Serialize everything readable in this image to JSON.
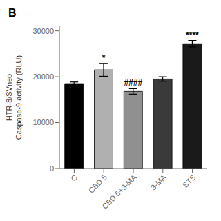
{
  "chart_data": {
    "type": "bar",
    "title": "B",
    "ylabel": "HTR-8/SVneo\nCaspase-9 activity (RLU)",
    "categories": [
      "C",
      "CBD 5",
      "CBD 5+3-MA",
      "3-MA",
      "STS"
    ],
    "values": [
      18500,
      21500,
      16800,
      19500,
      27200
    ],
    "errors": [
      350,
      1400,
      600,
      500,
      700
    ],
    "colors": [
      "#000000",
      "#b0b0b0",
      "#909090",
      "#3a3a3a",
      "#1a1a1a"
    ],
    "annotations": [
      {
        "category": "CBD 5",
        "text": "*"
      },
      {
        "category": "CBD 5+3-MA",
        "text": "####"
      },
      {
        "category": "STS",
        "text": "****"
      }
    ],
    "ylim": [
      0,
      31000
    ],
    "yticks": [
      0,
      10000,
      20000,
      30000
    ],
    "grid": false
  }
}
